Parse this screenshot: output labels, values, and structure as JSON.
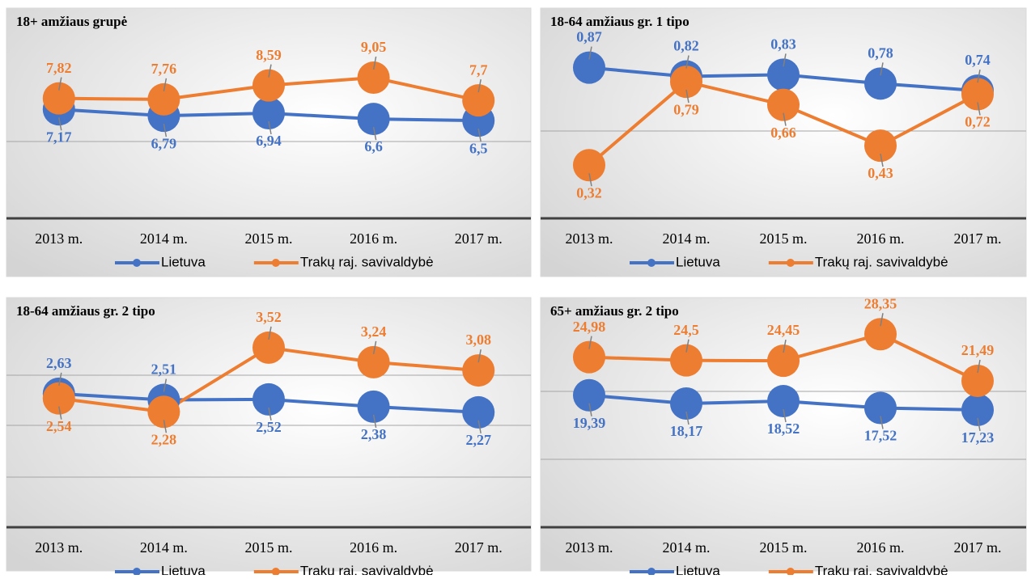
{
  "chart_data": [
    {
      "type": "line",
      "title": "18+ amžiaus grupė",
      "categories": [
        "2013 m.",
        "2014 m.",
        "2015 m.",
        "2016 m.",
        "2017 m."
      ],
      "ylim": [
        0.7,
        12.7
      ],
      "series": [
        {
          "name": "Lietuva",
          "color": "#4472c4",
          "values": [
            7.17,
            6.79,
            6.94,
            6.6,
            6.5
          ],
          "value_labels": [
            "7,17",
            "6,79",
            "6,94",
            "6,6",
            "6,5"
          ]
        },
        {
          "name": "Trakų raj. savivaldybė",
          "color": "#ed7d31",
          "values": [
            7.82,
            7.76,
            8.59,
            9.05,
            7.7
          ],
          "value_labels": [
            "7,82",
            "7,76",
            "8,59",
            "9,05",
            "7,7"
          ]
        }
      ]
    },
    {
      "type": "line",
      "title": "18-64 amžiaus gr. 1 tipo",
      "categories": [
        "2013 m.",
        "2014 m.",
        "2015 m.",
        "2016 m.",
        "2017 m."
      ],
      "ylim": [
        0.02,
        1.16
      ],
      "series": [
        {
          "name": "Lietuva",
          "color": "#4472c4",
          "values": [
            0.87,
            0.82,
            0.83,
            0.78,
            0.74
          ],
          "value_labels": [
            "0,87",
            "0,82",
            "0,83",
            "0,78",
            "0,74"
          ]
        },
        {
          "name": "Trakų raj. savivaldybė",
          "color": "#ed7d31",
          "values": [
            0.32,
            0.79,
            0.66,
            0.43,
            0.72
          ],
          "value_labels": [
            "0,32",
            "0,79",
            "0,66",
            "0,43",
            "0,72"
          ]
        }
      ]
    },
    {
      "type": "line",
      "title": "18-64 amžiaus gr. 2 tipo",
      "categories": [
        "2013 m.",
        "2014 m.",
        "2015 m.",
        "2016 m.",
        "2017 m."
      ],
      "ylim": [
        0.05,
        4.3
      ],
      "series": [
        {
          "name": "Lietuva",
          "color": "#4472c4",
          "values": [
            2.63,
            2.51,
            2.52,
            2.38,
            2.27
          ],
          "value_labels": [
            "2,63",
            "2,51",
            "2,52",
            "2,38",
            "2,27"
          ]
        },
        {
          "name": "Trakų raj. savivaldybė",
          "color": "#ed7d31",
          "values": [
            2.54,
            2.28,
            3.52,
            3.24,
            3.08
          ],
          "value_labels": [
            "2,54",
            "2,28",
            "3,52",
            "3,24",
            "3,08"
          ]
        }
      ]
    },
    {
      "type": "line",
      "title": "65+ amžiaus gr. 2 tipo",
      "categories": [
        "2013 m.",
        "2014 m.",
        "2015 m.",
        "2016 m.",
        "2017 m."
      ],
      "ylim": [
        0,
        32.3
      ],
      "series": [
        {
          "name": "Lietuva",
          "color": "#4472c4",
          "values": [
            19.39,
            18.17,
            18.52,
            17.52,
            17.23
          ],
          "value_labels": [
            "19,39",
            "18,17",
            "18,52",
            "17,52",
            "17,23"
          ]
        },
        {
          "name": "Trakų raj. savivaldybė",
          "color": "#ed7d31",
          "values": [
            24.98,
            24.5,
            24.45,
            28.35,
            21.49
          ],
          "value_labels": [
            "24,98",
            "24,5",
            "24,45",
            "28,35",
            "21,49"
          ]
        }
      ]
    }
  ]
}
